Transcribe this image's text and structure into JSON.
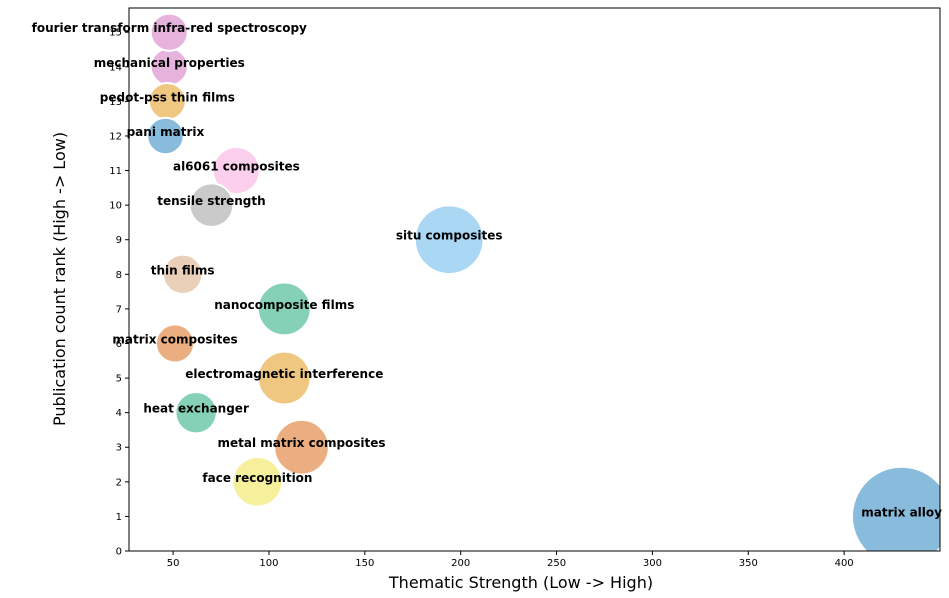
{
  "chart_data": {
    "type": "scatter",
    "title": "",
    "xlabel": "Thematic Strength (Low -> High)",
    "ylabel": "Publication count rank (High -> Low)",
    "xlim": [
      27,
      450
    ],
    "ylim": [
      0,
      15.7
    ],
    "xticks": [
      50,
      100,
      150,
      200,
      250,
      300,
      350,
      400
    ],
    "yticks": [
      0,
      1,
      2,
      3,
      4,
      5,
      6,
      7,
      8,
      9,
      10,
      11,
      12,
      13,
      14,
      15
    ],
    "grid": false,
    "points": [
      {
        "label": "matrix alloy",
        "x": 430,
        "y": 1,
        "size": 430,
        "color": "#6aaad3"
      },
      {
        "label": "face recognition",
        "x": 94,
        "y": 2,
        "size": 94,
        "color": "#f4ec84"
      },
      {
        "label": "metal matrix composites",
        "x": 117,
        "y": 3,
        "size": 117,
        "color": "#e69a60"
      },
      {
        "label": "heat exchanger",
        "x": 62,
        "y": 4,
        "size": 62,
        "color": "#67c5a5"
      },
      {
        "label": "electromagnetic interference",
        "x": 108,
        "y": 5,
        "size": 108,
        "color": "#ecb960"
      },
      {
        "label": "matrix composites",
        "x": 51,
        "y": 6,
        "size": 51,
        "color": "#e69a60"
      },
      {
        "label": "nanocomposite films",
        "x": 108,
        "y": 7,
        "size": 108,
        "color": "#67c5a5"
      },
      {
        "label": "thin films",
        "x": 55,
        "y": 8,
        "size": 55,
        "color": "#e5c3a8"
      },
      {
        "label": "situ composites",
        "x": 194,
        "y": 9,
        "size": 194,
        "color": "#93cdf1"
      },
      {
        "label": "tensile strength",
        "x": 70,
        "y": 10,
        "size": 70,
        "color": "#bdbdbd"
      },
      {
        "label": "al6061 composites",
        "x": 83,
        "y": 11,
        "size": 83,
        "color": "#fbc3e8"
      },
      {
        "label": "pani matrix",
        "x": 46,
        "y": 12,
        "size": 46,
        "color": "#6aaad3"
      },
      {
        "label": "pedot-pss thin films",
        "x": 47,
        "y": 13,
        "size": 47,
        "color": "#ecb960"
      },
      {
        "label": "mechanical properties",
        "x": 48,
        "y": 14,
        "size": 48,
        "color": "#dea0d2"
      },
      {
        "label": "fourier transform infra-red spectroscopy",
        "x": 48,
        "y": 15,
        "size": 48,
        "color": "#dea0d2"
      }
    ]
  }
}
